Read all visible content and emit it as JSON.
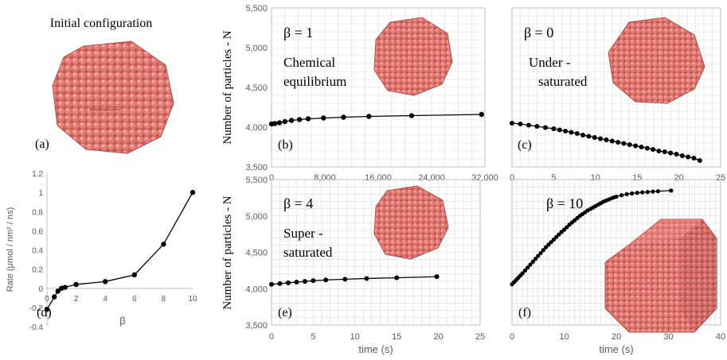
{
  "figure": {
    "initial_title": "Initial configuration",
    "initial_label": "(a)"
  },
  "chart_data": [
    {
      "id": "b",
      "type": "line",
      "panel_label": "(b)",
      "beta_label": "β = 1",
      "regime_label": [
        "Chemical",
        "equilibrium"
      ],
      "ylabel": "Number of particles - N",
      "xlabel": "",
      "xlim": [
        0,
        32000
      ],
      "ylim": [
        3500,
        5500
      ],
      "xticks": [
        0,
        8000,
        16000,
        24000,
        32000
      ],
      "xtick_labels": [
        "0",
        "8,000",
        "16,000",
        "24,000",
        "32,000"
      ],
      "yticks": [
        3500,
        4000,
        4500,
        5000,
        5500
      ],
      "ytick_labels": [
        "3,500",
        "4,000",
        "4,500",
        "5,000",
        "5,500"
      ],
      "grid": true,
      "series": [
        {
          "x": [
            0,
            500,
            1200,
            2000,
            3000,
            4200,
            5500,
            7800,
            10800,
            14600,
            21000,
            31500
          ],
          "y": [
            4040,
            4045,
            4055,
            4070,
            4085,
            4095,
            4105,
            4115,
            4125,
            4135,
            4145,
            4160
          ]
        }
      ]
    },
    {
      "id": "c",
      "type": "line",
      "panel_label": "(c)",
      "beta_label": "β = 0",
      "regime_label": [
        "Under -",
        "saturated"
      ],
      "ylabel": "",
      "xlabel": "",
      "xlim": [
        0,
        25
      ],
      "ylim": [
        3500,
        5500
      ],
      "xticks": [
        0,
        5,
        10,
        15,
        20,
        25
      ],
      "xtick_labels": [
        "0",
        "5",
        "10",
        "15",
        "20",
        "25"
      ],
      "yticks": [
        3500,
        4000,
        4500,
        5000,
        5500
      ],
      "ytick_labels": [],
      "grid": true,
      "series": [
        {
          "x": [
            0,
            1,
            2,
            3,
            4,
            5,
            5.7,
            6.4,
            7.1,
            7.8,
            8.5,
            9.2,
            9.9,
            10.6,
            11.3,
            12,
            12.7,
            13.4,
            14.1,
            14.8,
            15.5,
            16.2,
            16.9,
            17.6,
            18.3,
            19,
            19.7,
            20.4,
            21.1,
            21.8,
            22.5
          ],
          "y": [
            4050,
            4040,
            4025,
            4010,
            3995,
            3980,
            3965,
            3950,
            3935,
            3920,
            3900,
            3885,
            3870,
            3855,
            3840,
            3825,
            3810,
            3795,
            3780,
            3765,
            3750,
            3735,
            3720,
            3700,
            3690,
            3675,
            3660,
            3640,
            3625,
            3610,
            3580
          ]
        }
      ]
    },
    {
      "id": "d",
      "type": "line",
      "panel_label": "(d)",
      "ylabel": "Rate (μmol / nm² / ns)",
      "xlabel": "β",
      "xlim": [
        0,
        10
      ],
      "ylim": [
        -0.4,
        1.2
      ],
      "xticks": [
        0,
        2,
        4,
        6,
        8,
        10
      ],
      "xtick_labels": [
        "0",
        "2",
        "4",
        "6",
        "8",
        "10"
      ],
      "yticks": [
        -0.4,
        -0.2,
        0,
        0.2,
        0.4,
        0.6,
        0.8,
        1,
        1.2
      ],
      "ytick_labels": [
        "-0.4",
        "-0.2",
        "0",
        "0.2",
        "0.4",
        "0.6",
        "0.8",
        "1",
        "1.2"
      ],
      "grid": false,
      "series": [
        {
          "x": [
            0,
            0.5,
            0.75,
            1,
            1.25,
            2,
            4,
            6,
            8,
            10
          ],
          "y": [
            -0.22,
            -0.09,
            -0.03,
            0,
            0.01,
            0.04,
            0.07,
            0.14,
            0.46,
            1.0
          ]
        }
      ]
    },
    {
      "id": "e",
      "type": "line",
      "panel_label": "(e)",
      "beta_label": "β = 4",
      "regime_label": [
        "Super -",
        "saturated"
      ],
      "ylabel": "Number of particles - N",
      "xlabel": "time (s)",
      "xlim": [
        0,
        25
      ],
      "ylim": [
        3500,
        5500
      ],
      "xticks": [
        0,
        5,
        10,
        15,
        20,
        25
      ],
      "xtick_labels": [
        "0",
        "5",
        "10",
        "15",
        "20",
        "25"
      ],
      "yticks": [
        3500,
        4000,
        4500,
        5000,
        5500
      ],
      "ytick_labels": [
        "3,500",
        "4,000",
        "4,500",
        "5,000",
        "5,500"
      ],
      "grid": true,
      "series": [
        {
          "x": [
            0,
            1,
            2,
            3,
            4,
            5,
            6.5,
            8.8,
            11.4,
            15,
            19.8
          ],
          "y": [
            4060,
            4070,
            4080,
            4090,
            4100,
            4110,
            4120,
            4130,
            4140,
            4150,
            4165
          ]
        }
      ]
    },
    {
      "id": "f",
      "type": "line",
      "panel_label": "(f)",
      "beta_label": "β = 10",
      "ylabel": "",
      "xlabel": "time (s)",
      "xlim": [
        0,
        40
      ],
      "ylim": [
        3500,
        5500
      ],
      "xticks": [
        0,
        10,
        20,
        30,
        40
      ],
      "xtick_labels": [
        "0",
        "10",
        "20",
        "30",
        "40"
      ],
      "yticks": [
        3500,
        4000,
        4500,
        5000,
        5500
      ],
      "ytick_labels": [],
      "grid": true,
      "series": [
        {
          "x": [
            0,
            0.4,
            0.8,
            1.2,
            1.6,
            2,
            2.5,
            3,
            3.5,
            4,
            4.5,
            5,
            5.5,
            6,
            6.5,
            7,
            7.5,
            8,
            8.5,
            9,
            9.5,
            10,
            10.5,
            11,
            11.5,
            12,
            12.5,
            13,
            13.5,
            14,
            14.5,
            15,
            15.5,
            16,
            16.5,
            17,
            17.5,
            18,
            18.5,
            19,
            19.5,
            20,
            21,
            22,
            23,
            24,
            25,
            26,
            27,
            28,
            30.5
          ],
          "y": [
            4060,
            4090,
            4120,
            4150,
            4180,
            4210,
            4250,
            4290,
            4330,
            4370,
            4410,
            4450,
            4490,
            4530,
            4570,
            4605,
            4640,
            4675,
            4710,
            4745,
            4780,
            4810,
            4845,
            4880,
            4910,
            4940,
            4970,
            5000,
            5025,
            5050,
            5075,
            5095,
            5115,
            5135,
            5155,
            5175,
            5195,
            5210,
            5225,
            5240,
            5255,
            5265,
            5285,
            5300,
            5310,
            5318,
            5325,
            5330,
            5335,
            5340,
            5350
          ]
        }
      ]
    }
  ],
  "colors": {
    "particle": "#e06d68",
    "particle_dark": "#a8403c",
    "line": "#000000",
    "grid": "#d9d9d9"
  }
}
